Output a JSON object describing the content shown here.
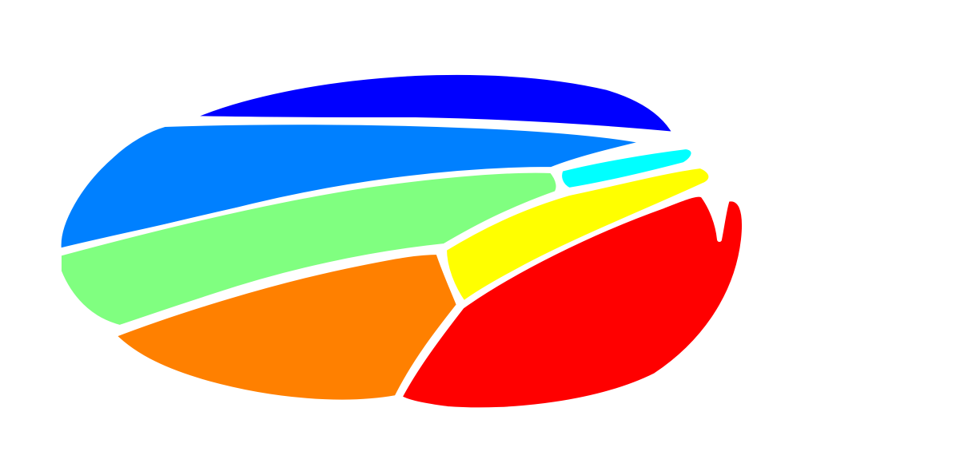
{
  "figure": {
    "background_color": "#ffffff",
    "segments": [
      {
        "id": "segment-dark-blue",
        "color": "#0000ff"
      },
      {
        "id": "segment-azure",
        "color": "#0080ff"
      },
      {
        "id": "segment-cyan",
        "color": "#00ffff"
      },
      {
        "id": "segment-light-green",
        "color": "#80ff80"
      },
      {
        "id": "segment-yellow",
        "color": "#ffff00"
      },
      {
        "id": "segment-orange",
        "color": "#ff8000"
      },
      {
        "id": "segment-red",
        "color": "#ff0000"
      }
    ]
  }
}
